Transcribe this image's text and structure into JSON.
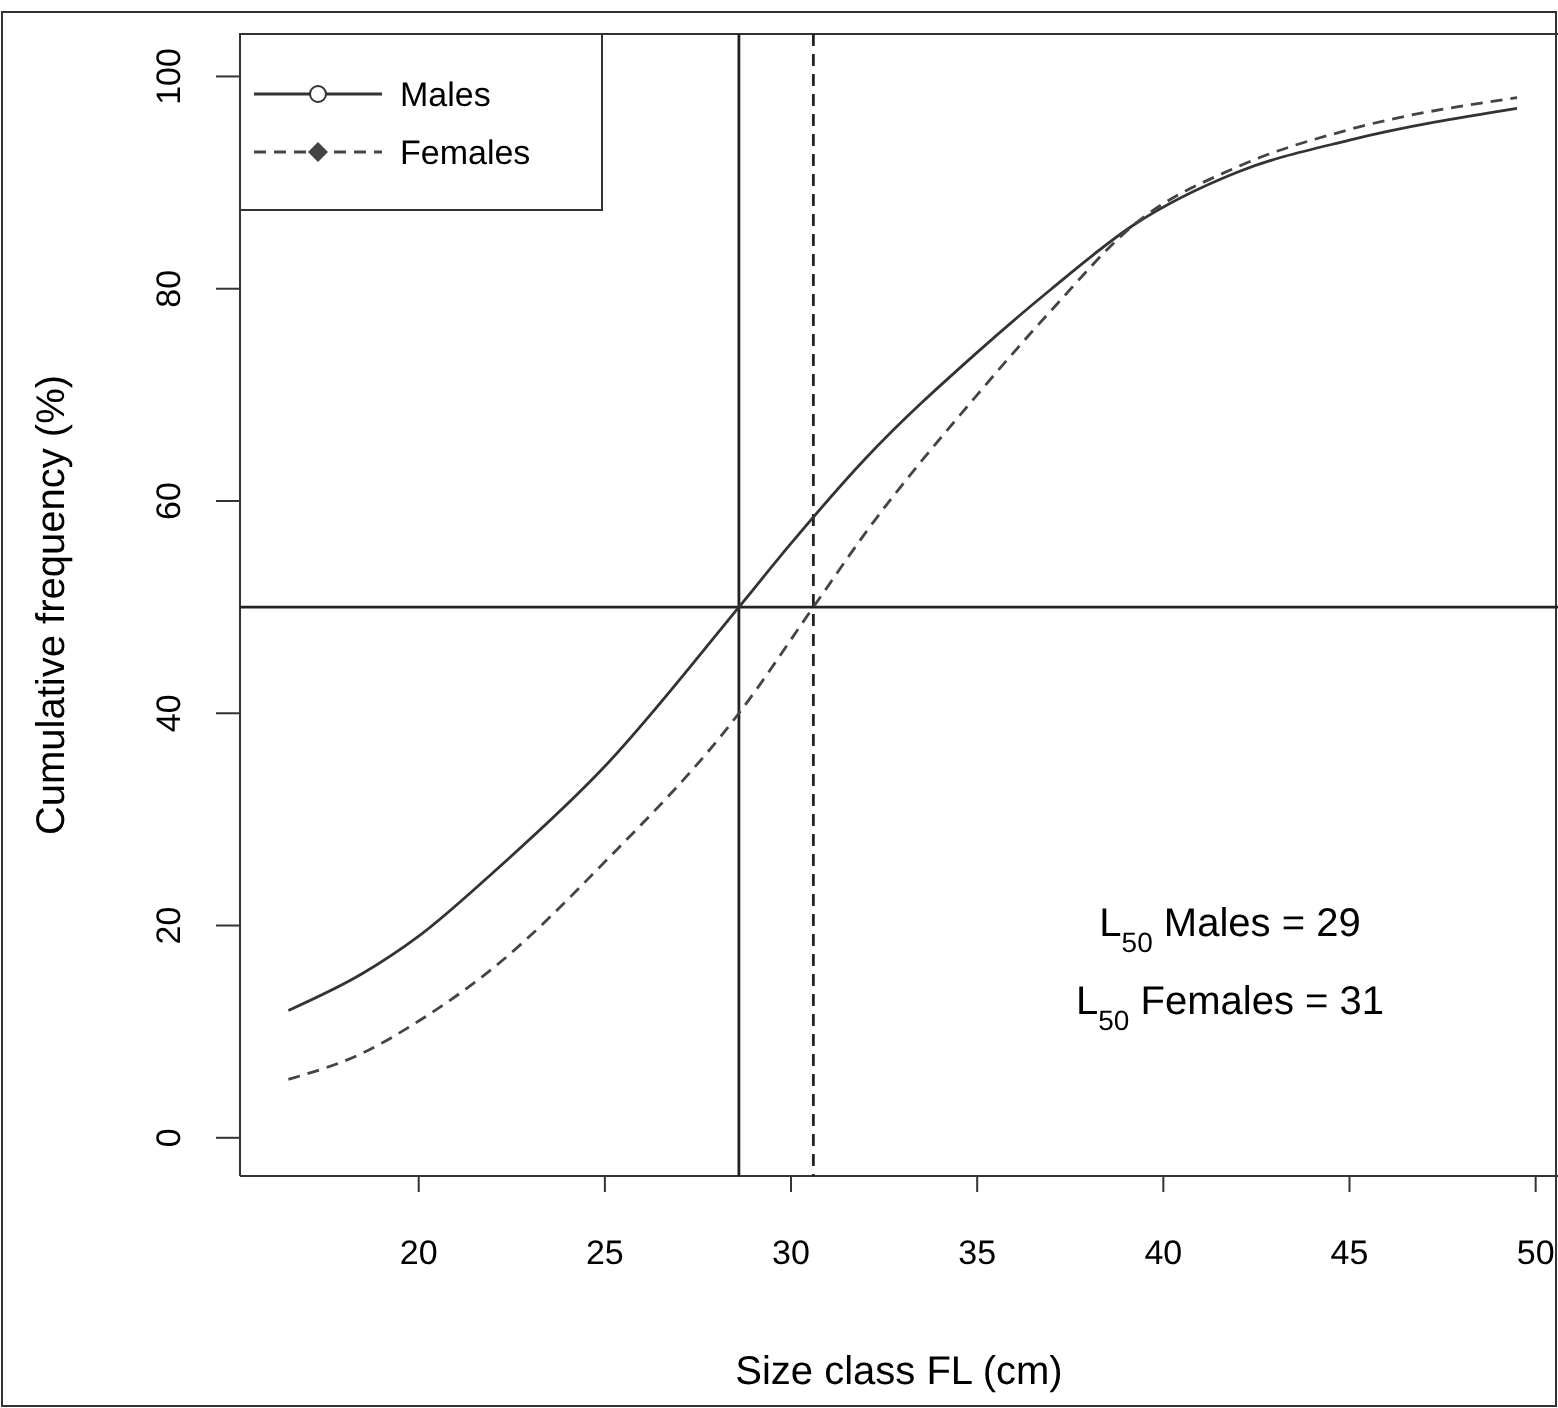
{
  "chart_data": {
    "type": "line",
    "xlabel": "Size class FL (cm)",
    "ylabel": "Cumulative frequency (%)",
    "xlim": [
      15.2,
      50.6
    ],
    "ylim": [
      -3.6,
      104
    ],
    "xticks": [
      20,
      25,
      30,
      35,
      40,
      45,
      50
    ],
    "yticks": [
      0,
      20,
      40,
      60,
      80,
      100
    ],
    "grid": false,
    "legend": "top left",
    "series": [
      {
        "name": "Males",
        "color": "#333333",
        "line_style": "solid",
        "x": [
          16.5,
          18.5,
          20,
          22,
          25,
          28.6,
          30,
          32,
          35,
          37,
          39.2,
          42,
          45,
          49.5
        ],
        "values": [
          12,
          15.5,
          19,
          25,
          35,
          50,
          56,
          64,
          74,
          80,
          86,
          91,
          94,
          97
        ]
      },
      {
        "name": "Females",
        "color": "#444444",
        "line_style": "dashed",
        "x": [
          16.5,
          18.5,
          20,
          22,
          25,
          28.6,
          30.6,
          32,
          35,
          37,
          39.2,
          42,
          45,
          49.5
        ],
        "values": [
          5.5,
          8,
          11,
          16,
          26,
          40,
          50,
          57,
          70,
          78,
          86,
          91.5,
          95,
          98
        ]
      }
    ],
    "ref_lines": [
      {
        "axis": "x",
        "value": 28.6,
        "line_style": "solid",
        "color": "#222222"
      },
      {
        "axis": "x",
        "value": 30.6,
        "line_style": "dashed",
        "color": "#222222"
      },
      {
        "axis": "y",
        "value": 50,
        "line_style": "solid",
        "color": "#222222"
      }
    ],
    "annotations": [
      "L$_{50}$ Males = 29",
      "L$_{50}$ Females = 31"
    ]
  }
}
